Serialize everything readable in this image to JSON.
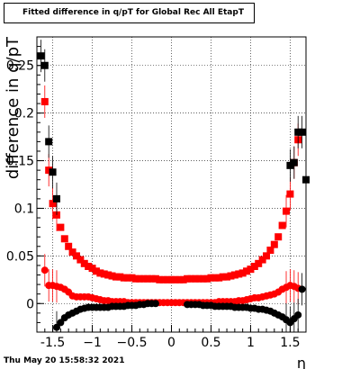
{
  "title": "Fitted difference in q/pT for Global Rec All EtapT",
  "footer_timestamp": "Thu May 20 15:58:32 2021",
  "chart_data": {
    "type": "scatter",
    "title": "Fitted difference in q/pT for Global Rec All EtapT",
    "xlabel": "η",
    "ylabel": "difference in q/pT",
    "xlim": [
      -1.7,
      1.7
    ],
    "ylim": [
      -0.03,
      0.28
    ],
    "xticks": [
      {
        "value": -1.5,
        "label": "-1.5"
      },
      {
        "value": -1.0,
        "label": "−1"
      },
      {
        "value": -0.5,
        "label": "−0.5"
      },
      {
        "value": 0.0,
        "label": "0"
      },
      {
        "value": 0.5,
        "label": "0.5"
      },
      {
        "value": 1.0,
        "label": "1"
      },
      {
        "value": 1.5,
        "label": "1.5"
      }
    ],
    "yticks": [
      {
        "value": 0.0,
        "label": "0"
      },
      {
        "value": 0.05,
        "label": "0.05"
      },
      {
        "value": 0.1,
        "label": "0.1"
      },
      {
        "value": 0.15,
        "label": "0.15"
      },
      {
        "value": 0.2,
        "label": "0.2"
      },
      {
        "value": 0.25,
        "label": "0.25"
      }
    ],
    "grid": true,
    "series": [
      {
        "marker": "square",
        "color": "#ff0000",
        "points": [
          [
            -1.6,
            0.212
          ],
          [
            -1.55,
            0.14
          ],
          [
            -1.5,
            0.105
          ],
          [
            -1.45,
            0.093
          ],
          [
            -1.4,
            0.08
          ],
          [
            -1.35,
            0.068
          ],
          [
            -1.3,
            0.06
          ],
          [
            -1.25,
            0.054
          ],
          [
            -1.2,
            0.05
          ],
          [
            -1.15,
            0.046
          ],
          [
            -1.1,
            0.042
          ],
          [
            -1.05,
            0.039
          ],
          [
            -1.0,
            0.037
          ],
          [
            -0.95,
            0.034
          ],
          [
            -0.9,
            0.032
          ],
          [
            -0.85,
            0.031
          ],
          [
            -0.8,
            0.03
          ],
          [
            -0.75,
            0.029
          ],
          [
            -0.7,
            0.028
          ],
          [
            -0.65,
            0.028
          ],
          [
            -0.6,
            0.027
          ],
          [
            -0.55,
            0.027
          ],
          [
            -0.5,
            0.027
          ],
          [
            -0.45,
            0.026
          ],
          [
            -0.4,
            0.026
          ],
          [
            -0.35,
            0.026
          ],
          [
            -0.3,
            0.026
          ],
          [
            -0.25,
            0.026
          ],
          [
            -0.2,
            0.026
          ],
          [
            -0.15,
            0.025
          ],
          [
            -0.1,
            0.025
          ],
          [
            -0.05,
            0.025
          ],
          [
            0.0,
            0.025
          ],
          [
            0.05,
            0.025
          ],
          [
            0.1,
            0.025
          ],
          [
            0.15,
            0.025
          ],
          [
            0.2,
            0.026
          ],
          [
            0.25,
            0.026
          ],
          [
            0.3,
            0.026
          ],
          [
            0.35,
            0.026
          ],
          [
            0.4,
            0.026
          ],
          [
            0.45,
            0.026
          ],
          [
            0.5,
            0.027
          ],
          [
            0.55,
            0.027
          ],
          [
            0.6,
            0.027
          ],
          [
            0.65,
            0.028
          ],
          [
            0.7,
            0.028
          ],
          [
            0.75,
            0.029
          ],
          [
            0.8,
            0.03
          ],
          [
            0.85,
            0.031
          ],
          [
            0.9,
            0.032
          ],
          [
            0.95,
            0.034
          ],
          [
            1.0,
            0.036
          ],
          [
            1.05,
            0.039
          ],
          [
            1.1,
            0.042
          ],
          [
            1.15,
            0.046
          ],
          [
            1.2,
            0.05
          ],
          [
            1.25,
            0.056
          ],
          [
            1.3,
            0.062
          ],
          [
            1.35,
            0.07
          ],
          [
            1.4,
            0.082
          ],
          [
            1.45,
            0.097
          ],
          [
            1.5,
            0.115
          ],
          [
            1.55,
            0.148
          ],
          [
            1.6,
            0.172
          ]
        ]
      },
      {
        "marker": "square",
        "color": "#000000",
        "points": [
          [
            -1.65,
            0.26
          ],
          [
            -1.6,
            0.25
          ],
          [
            -1.55,
            0.17
          ],
          [
            -1.5,
            0.138
          ],
          [
            -1.45,
            0.11
          ]
        ]
      },
      {
        "marker": "square",
        "color": "#000000",
        "points": [
          [
            1.5,
            0.145
          ],
          [
            1.55,
            0.148
          ],
          [
            1.6,
            0.18
          ],
          [
            1.65,
            0.18
          ],
          [
            1.7,
            0.13
          ]
        ]
      },
      {
        "marker": "circle",
        "color": "#ff0000",
        "points": [
          [
            -1.6,
            0.035
          ],
          [
            -1.55,
            0.019
          ],
          [
            -1.5,
            0.019
          ],
          [
            -1.45,
            0.018
          ],
          [
            -1.4,
            0.017
          ],
          [
            -1.35,
            0.015
          ],
          [
            -1.3,
            0.012
          ],
          [
            -1.25,
            0.008
          ],
          [
            -1.2,
            0.007
          ],
          [
            -1.15,
            0.007
          ],
          [
            -1.1,
            0.007
          ],
          [
            -1.05,
            0.007
          ],
          [
            -1.0,
            0.006
          ],
          [
            -0.95,
            0.005
          ],
          [
            -0.9,
            0.004
          ],
          [
            -0.85,
            0.003
          ],
          [
            -0.8,
            0.003
          ],
          [
            -0.75,
            0.002
          ],
          [
            -0.7,
            0.002
          ],
          [
            -0.65,
            0.002
          ],
          [
            -0.6,
            0.002
          ],
          [
            -0.55,
            0.001
          ],
          [
            -0.5,
            0.001
          ],
          [
            -0.45,
            0.001
          ],
          [
            -0.4,
            0.001
          ],
          [
            -0.35,
            0.001
          ],
          [
            -0.3,
            0.001
          ],
          [
            -0.25,
            0.001
          ],
          [
            -0.2,
            0.001
          ],
          [
            -0.15,
            0.001
          ],
          [
            -0.1,
            0.001
          ],
          [
            -0.05,
            0.001
          ],
          [
            0.0,
            0.001
          ],
          [
            0.05,
            0.001
          ],
          [
            0.1,
            0.001
          ],
          [
            0.15,
            0.001
          ],
          [
            0.2,
            0.001
          ],
          [
            0.25,
            0.001
          ],
          [
            0.3,
            0.001
          ],
          [
            0.35,
            0.001
          ],
          [
            0.4,
            0.001
          ],
          [
            0.45,
            0.001
          ],
          [
            0.5,
            0.001
          ],
          [
            0.55,
            0.001
          ],
          [
            0.6,
            0.002
          ],
          [
            0.65,
            0.002
          ],
          [
            0.7,
            0.002
          ],
          [
            0.75,
            0.002
          ],
          [
            0.8,
            0.002
          ],
          [
            0.85,
            0.003
          ],
          [
            0.9,
            0.003
          ],
          [
            0.95,
            0.004
          ],
          [
            1.0,
            0.005
          ],
          [
            1.05,
            0.006
          ],
          [
            1.1,
            0.006
          ],
          [
            1.15,
            0.007
          ],
          [
            1.2,
            0.008
          ],
          [
            1.25,
            0.009
          ],
          [
            1.3,
            0.01
          ],
          [
            1.35,
            0.012
          ],
          [
            1.4,
            0.015
          ],
          [
            1.45,
            0.017
          ],
          [
            1.5,
            0.019
          ],
          [
            1.55,
            0.018
          ],
          [
            1.6,
            0.016
          ]
        ]
      },
      {
        "marker": "circle",
        "color": "#000000",
        "points": [
          [
            -1.45,
            -0.025
          ],
          [
            -1.4,
            -0.02
          ],
          [
            -1.35,
            -0.015
          ],
          [
            -1.3,
            -0.012
          ],
          [
            -1.25,
            -0.01
          ],
          [
            -1.2,
            -0.008
          ],
          [
            -1.15,
            -0.006
          ],
          [
            -1.1,
            -0.005
          ],
          [
            -1.05,
            -0.004
          ],
          [
            -1.0,
            -0.004
          ],
          [
            -0.95,
            -0.004
          ],
          [
            -0.9,
            -0.004
          ],
          [
            -0.85,
            -0.004
          ],
          [
            -0.8,
            -0.004
          ],
          [
            -0.75,
            -0.003
          ],
          [
            -0.7,
            -0.003
          ],
          [
            -0.65,
            -0.003
          ],
          [
            -0.6,
            -0.003
          ],
          [
            -0.55,
            -0.002
          ],
          [
            -0.5,
            -0.002
          ],
          [
            -0.45,
            -0.002
          ],
          [
            -0.4,
            -0.001
          ],
          [
            -0.35,
            -0.001
          ],
          [
            -0.3,
            0.0
          ],
          [
            -0.25,
            0.0
          ],
          [
            -0.2,
            0.0
          ],
          [
            0.2,
            -0.001
          ],
          [
            0.25,
            -0.001
          ],
          [
            0.3,
            -0.001
          ],
          [
            0.35,
            -0.001
          ],
          [
            0.4,
            -0.002
          ],
          [
            0.45,
            -0.002
          ],
          [
            0.5,
            -0.002
          ],
          [
            0.55,
            -0.003
          ],
          [
            0.6,
            -0.003
          ],
          [
            0.65,
            -0.003
          ],
          [
            0.7,
            -0.003
          ],
          [
            0.75,
            -0.003
          ],
          [
            0.8,
            -0.004
          ],
          [
            0.85,
            -0.004
          ],
          [
            0.9,
            -0.004
          ],
          [
            0.95,
            -0.004
          ],
          [
            1.0,
            -0.005
          ],
          [
            1.05,
            -0.005
          ],
          [
            1.1,
            -0.006
          ],
          [
            1.15,
            -0.006
          ],
          [
            1.2,
            -0.007
          ],
          [
            1.25,
            -0.008
          ],
          [
            1.3,
            -0.01
          ],
          [
            1.35,
            -0.012
          ],
          [
            1.4,
            -0.014
          ],
          [
            1.45,
            -0.017
          ],
          [
            1.5,
            -0.02
          ],
          [
            1.55,
            -0.016
          ],
          [
            1.6,
            -0.012
          ],
          [
            1.65,
            0.015
          ]
        ]
      }
    ]
  }
}
